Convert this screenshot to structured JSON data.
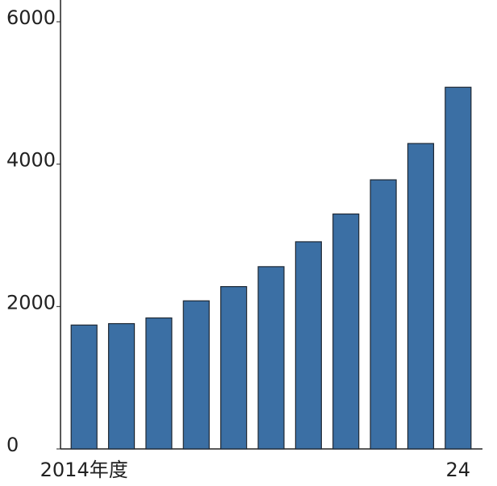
{
  "chart_data": {
    "type": "bar",
    "categories": [
      "2014年度",
      null,
      null,
      null,
      null,
      null,
      null,
      null,
      null,
      null,
      "24"
    ],
    "values": [
      1740,
      1760,
      1840,
      2080,
      2280,
      2560,
      2910,
      3300,
      3780,
      4290,
      5080
    ],
    "color": "#3b6fa4",
    "ylim": [
      0,
      6000
    ],
    "yticks": [
      0,
      2000,
      4000,
      6000
    ]
  }
}
